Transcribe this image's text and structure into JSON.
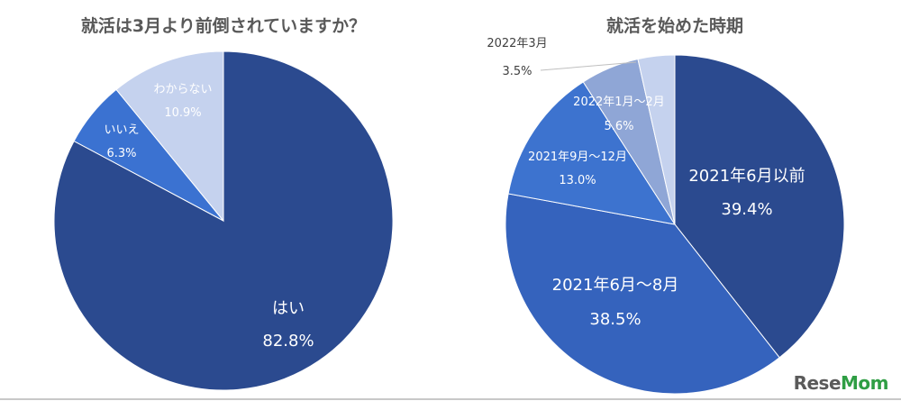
{
  "chart_data": [
    {
      "type": "pie",
      "title": "就活は3月より前倒されていますか？",
      "categories": [
        "はい",
        "いいえ",
        "わからない"
      ],
      "values": [
        82.8,
        6.3,
        10.9
      ],
      "value_labels": [
        "82.8%",
        "6.3%",
        "10.9%"
      ],
      "colors": [
        "#2b4a8f",
        "#3b72d1",
        "#c5d2ee"
      ],
      "slice_order": [
        "はい",
        "いいえ",
        "わからない"
      ],
      "start": "12 o'clock, clockwise"
    },
    {
      "type": "pie",
      "title": "就活を始めた時期",
      "categories": [
        "2021年6月以前",
        "2021年6月～8月",
        "2021年9月～12月",
        "2022年1月～2月",
        "2022年3月"
      ],
      "values": [
        39.4,
        38.5,
        13.0,
        5.6,
        3.5
      ],
      "value_labels": [
        "39.4%",
        "38.5%",
        "13.0%",
        "5.6%",
        "3.5%"
      ],
      "colors": [
        "#2b4a8f",
        "#3563bd",
        "#3d73cf",
        "#8fa6d6",
        "#c5d2ee"
      ],
      "start": "12 o'clock, clockwise"
    }
  ],
  "logo": {
    "text_main": "Rese",
    "text_accent": "Mom"
  }
}
